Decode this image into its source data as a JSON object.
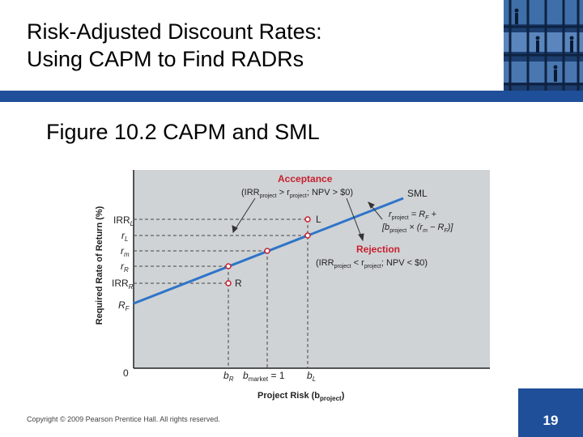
{
  "slide": {
    "title_line1": "Risk-Adjusted Discount Rates:",
    "title_line2": "Using CAPM to Find RADRs",
    "figure_title": "Figure 10.2  CAPM and SML",
    "copyright": "Copyright © 2009 Pearson Prentice Hall. All rights reserved.",
    "page_number": "19"
  },
  "colors": {
    "band": "#1f4f99",
    "sml_line": "#2f74c8",
    "chart_bg": "#cfd3d6",
    "accent_red": "#c8202e"
  },
  "diagram": {
    "y_axis_label": "Required Rate of Return (%)",
    "x_axis_label_main": "Project Risk (b",
    "x_axis_label_sub": "project",
    "x_axis_label_end": ")",
    "y_ticks": [
      {
        "main": "IRR",
        "sub": "L"
      },
      {
        "main": "r",
        "sub": "L"
      },
      {
        "main": "r",
        "sub": "m"
      },
      {
        "main": "r",
        "sub": "R"
      },
      {
        "main": "IRR",
        "sub": "R"
      },
      {
        "main": "R",
        "sub": "F"
      }
    ],
    "origin_label": "0",
    "x_ticks": {
      "bR_main": "b",
      "bR_sub": "R",
      "bmarket_main": "b",
      "bmarket_sub": "market",
      "bmarket_end": " = 1",
      "bL_main": "b",
      "bL_sub": "L"
    },
    "sml_label": "SML",
    "point_L": "L",
    "point_R": "R",
    "acceptance_title": "Acceptance",
    "acceptance_cond_a": "(IRR",
    "acceptance_cond_sub1": "project",
    "acceptance_cond_b": " > r",
    "acceptance_cond_sub2": "project",
    "acceptance_cond_c": "; NPV > $0)",
    "rejection_title": "Rejection",
    "rejection_cond_a": "(IRR",
    "rejection_cond_sub1": "project",
    "rejection_cond_b": " < r",
    "rejection_cond_sub2": "project",
    "rejection_cond_c": "; NPV < $0)",
    "formula_line1_a": "r",
    "formula_line1_sub": "project",
    "formula_line1_b": " = R",
    "formula_line1_sub2": "F",
    "formula_line1_c": " +",
    "formula_line2_a": "[b",
    "formula_line2_sub": "project",
    "formula_line2_b": " × (r",
    "formula_line2_sub2": "m",
    "formula_line2_c": " − R",
    "formula_line2_sub3": "F",
    "formula_line2_d": ")]"
  }
}
